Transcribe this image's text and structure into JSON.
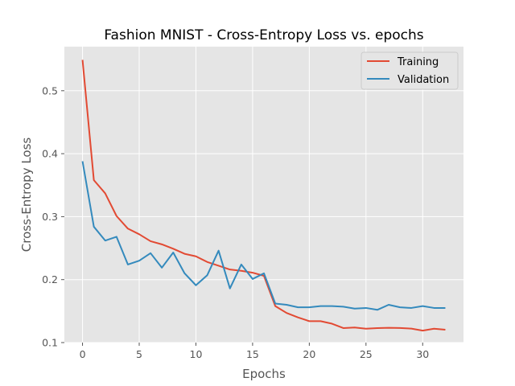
{
  "chart_data": {
    "type": "line",
    "title": "Fashion MNIST - Cross-Entropy Loss vs. epochs",
    "xlabel": "Epochs",
    "ylabel": "Cross-Entropy Loss",
    "xlim": [
      -1.6,
      33.6
    ],
    "ylim": [
      0.1,
      0.57
    ],
    "xticks": [
      0,
      5,
      10,
      15,
      20,
      25,
      30
    ],
    "yticks": [
      0.1,
      0.2,
      0.3,
      0.4,
      0.5
    ],
    "ytick_labels": [
      "0.1",
      "0.2",
      "0.3",
      "0.4",
      "0.5"
    ],
    "grid": true,
    "legend_position": "top-right",
    "x": [
      0,
      1,
      2,
      3,
      4,
      5,
      6,
      7,
      8,
      9,
      10,
      11,
      12,
      13,
      14,
      15,
      16,
      17,
      18,
      19,
      20,
      21,
      22,
      23,
      24,
      25,
      26,
      27,
      28,
      29,
      30,
      31,
      32
    ],
    "series": [
      {
        "name": "Training",
        "color": "#E24A33",
        "values": [
          0.549,
          0.358,
          0.337,
          0.301,
          0.281,
          0.272,
          0.261,
          0.256,
          0.249,
          0.241,
          0.237,
          0.228,
          0.222,
          0.216,
          0.214,
          0.211,
          0.206,
          0.158,
          0.147,
          0.14,
          0.134,
          0.134,
          0.13,
          0.123,
          0.124,
          0.122,
          0.123,
          0.1235,
          0.1232,
          0.1222,
          0.119,
          0.122,
          0.1205
        ]
      },
      {
        "name": "Validation",
        "color": "#348ABD",
        "values": [
          0.388,
          0.284,
          0.262,
          0.268,
          0.224,
          0.23,
          0.242,
          0.219,
          0.243,
          0.21,
          0.191,
          0.207,
          0.246,
          0.186,
          0.224,
          0.201,
          0.21,
          0.162,
          0.16,
          0.156,
          0.156,
          0.158,
          0.158,
          0.157,
          0.154,
          0.155,
          0.152,
          0.16,
          0.156,
          0.155,
          0.158,
          0.155,
          0.155
        ]
      }
    ]
  }
}
